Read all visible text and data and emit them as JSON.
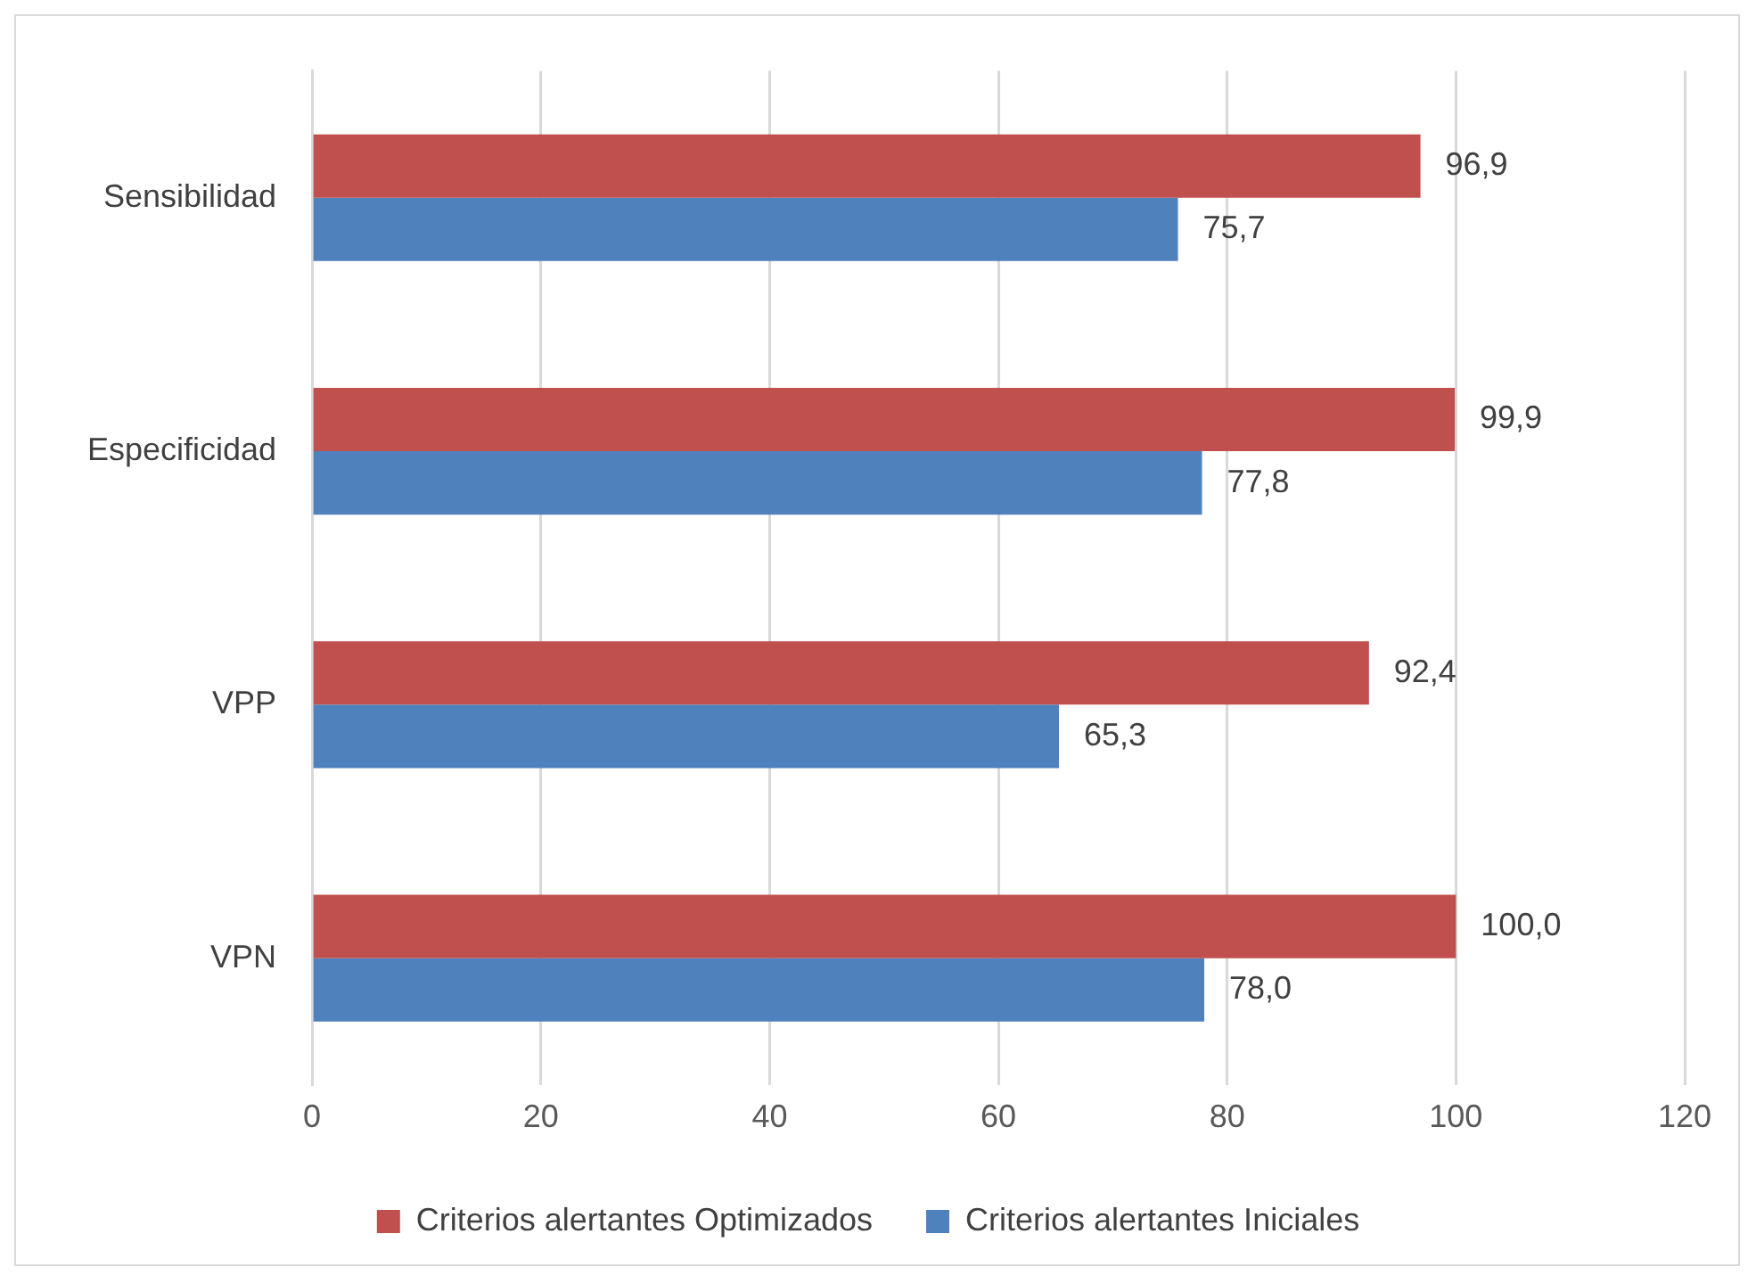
{
  "chart_data": {
    "type": "bar",
    "orientation": "horizontal",
    "categories": [
      "Sensibilidad",
      "Especificidad",
      "VPP",
      "VPN"
    ],
    "series": [
      {
        "name": "Criterios alertantes Optimizados",
        "color": "#c0504d",
        "values": [
          96.9,
          99.9,
          92.4,
          100.0
        ],
        "value_labels": [
          "96,9",
          "99,9",
          "92,4",
          "100,0"
        ]
      },
      {
        "name": "Criterios alertantes Iniciales",
        "color": "#4f81bd",
        "values": [
          75.7,
          77.8,
          65.3,
          78.0
        ],
        "value_labels": [
          "75,7",
          "77,8",
          "65,3",
          "78,0"
        ]
      }
    ],
    "xlim": [
      0,
      120
    ],
    "xticks": [
      0,
      20,
      40,
      60,
      80,
      100,
      120
    ],
    "grid": "x",
    "legend": "bottom"
  }
}
